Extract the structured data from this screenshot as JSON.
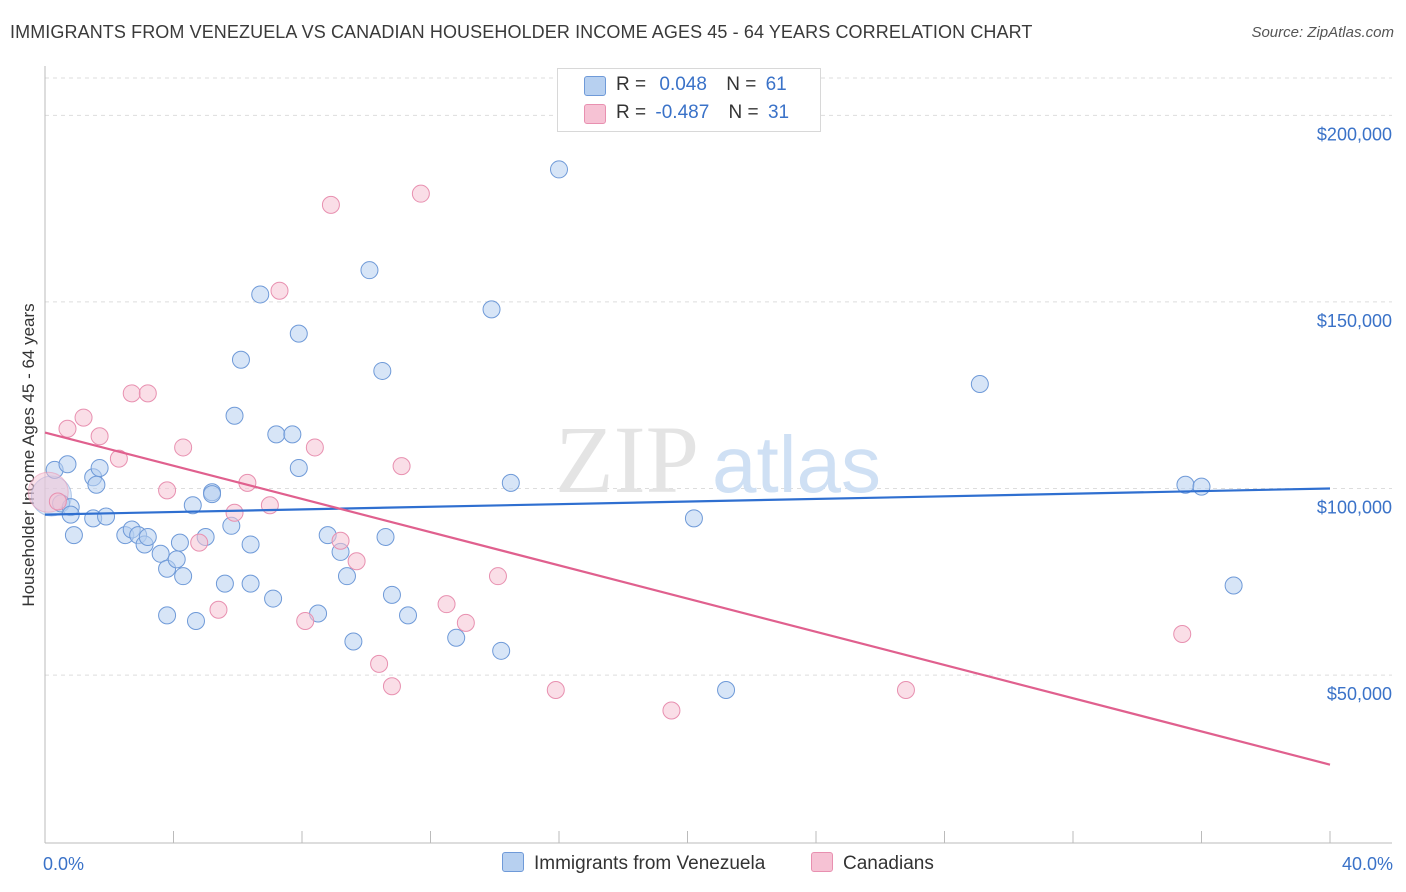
{
  "title": "IMMIGRANTS FROM VENEZUELA VS CANADIAN HOUSEHOLDER INCOME AGES 45 - 64 YEARS CORRELATION CHART",
  "source": "Source: ZipAtlas.com",
  "watermark": {
    "zip": "ZIP",
    "atlas": "atlas"
  },
  "legend": {
    "rows": [
      {
        "r_label": "R =",
        "r_value": "0.048",
        "n_label": "N =",
        "n_value": "61"
      },
      {
        "r_label": "R =",
        "r_value": "-0.487",
        "n_label": "N =",
        "n_value": "31"
      }
    ]
  },
  "bottom_legend": {
    "series1": "Immigrants from Venezuela",
    "series2": "Canadians"
  },
  "colors": {
    "blue": "#3a72c8",
    "blue_fill": "#b7d0f0",
    "blue_line": "#2f6fd0",
    "pink": "#e06090",
    "pink_fill": "#f6c2d4",
    "pink_line": "#e0608e"
  },
  "chart_data": {
    "type": "scatter",
    "title": "IMMIGRANTS FROM VENEZUELA VS CANADIAN HOUSEHOLDER INCOME AGES 45 - 64 YEARS CORRELATION CHART",
    "xlabel": "",
    "ylabel": "Householder Income Ages 45 - 64 years",
    "xlim": [
      0,
      40
    ],
    "ylim": [
      5000,
      210000
    ],
    "x_tick_labels": [
      "0.0%",
      "40.0%"
    ],
    "y_ticks": [
      50000,
      100000,
      150000,
      200000
    ],
    "y_tick_labels": [
      "$50,000",
      "$100,000",
      "$150,000",
      "$200,000"
    ],
    "series": [
      {
        "name": "Immigrants from Venezuela",
        "trend": {
          "x": [
            0,
            40
          ],
          "y": [
            93000,
            100000
          ]
        },
        "points": [
          [
            0.3,
            105000
          ],
          [
            0.7,
            106500
          ],
          [
            0.5,
            96000
          ],
          [
            0.9,
            87500
          ],
          [
            0.8,
            95000
          ],
          [
            0.8,
            93000
          ],
          [
            1.5,
            103000
          ],
          [
            1.6,
            101000
          ],
          [
            1.7,
            105500
          ],
          [
            1.5,
            92000
          ],
          [
            1.9,
            92500
          ],
          [
            2.5,
            87500
          ],
          [
            2.7,
            89000
          ],
          [
            2.9,
            87500
          ],
          [
            3.1,
            85000
          ],
          [
            3.2,
            87000
          ],
          [
            3.6,
            82500
          ],
          [
            3.8,
            78500
          ],
          [
            3.8,
            66000
          ],
          [
            4.1,
            81000
          ],
          [
            4.2,
            85500
          ],
          [
            4.3,
            76500
          ],
          [
            4.6,
            95500
          ],
          [
            4.7,
            64500
          ],
          [
            5.0,
            87000
          ],
          [
            5.2,
            99000
          ],
          [
            5.2,
            98500
          ],
          [
            5.6,
            74500
          ],
          [
            5.8,
            90000
          ],
          [
            5.9,
            119500
          ],
          [
            6.1,
            134500
          ],
          [
            6.4,
            74500
          ],
          [
            6.4,
            85000
          ],
          [
            6.7,
            152000
          ],
          [
            7.1,
            70500
          ],
          [
            7.2,
            114500
          ],
          [
            7.7,
            114500
          ],
          [
            7.9,
            105500
          ],
          [
            7.9,
            141500
          ],
          [
            8.5,
            66500
          ],
          [
            8.8,
            87500
          ],
          [
            9.2,
            83000
          ],
          [
            9.4,
            76500
          ],
          [
            9.6,
            59000
          ],
          [
            10.1,
            158500
          ],
          [
            10.5,
            131500
          ],
          [
            10.6,
            87000
          ],
          [
            10.8,
            71500
          ],
          [
            11.3,
            66000
          ],
          [
            12.8,
            60000
          ],
          [
            13.9,
            148000
          ],
          [
            14.2,
            56500
          ],
          [
            14.5,
            101500
          ],
          [
            16.0,
            185500
          ],
          [
            20.2,
            92000
          ],
          [
            21.2,
            46000
          ],
          [
            29.1,
            128000
          ],
          [
            35.5,
            101000
          ],
          [
            36.0,
            100500
          ],
          [
            37.0,
            74000
          ]
        ],
        "big_point": [
          0.2,
          98000
        ]
      },
      {
        "name": "Canadians",
        "trend": {
          "x": [
            0,
            40
          ],
          "y": [
            115000,
            26000
          ]
        },
        "points": [
          [
            0.4,
            96500
          ],
          [
            0.7,
            116000
          ],
          [
            1.2,
            119000
          ],
          [
            1.7,
            114000
          ],
          [
            2.3,
            108000
          ],
          [
            2.7,
            125500
          ],
          [
            3.2,
            125500
          ],
          [
            3.8,
            99500
          ],
          [
            4.3,
            111000
          ],
          [
            4.8,
            85500
          ],
          [
            5.4,
            67500
          ],
          [
            5.9,
            93500
          ],
          [
            6.3,
            101500
          ],
          [
            7.0,
            95500
          ],
          [
            7.3,
            153000
          ],
          [
            8.1,
            64500
          ],
          [
            8.4,
            111000
          ],
          [
            9.2,
            86000
          ],
          [
            9.7,
            80500
          ],
          [
            10.4,
            53000
          ],
          [
            10.8,
            47000
          ],
          [
            11.1,
            106000
          ],
          [
            11.7,
            179000
          ],
          [
            12.5,
            69000
          ],
          [
            13.1,
            64000
          ],
          [
            14.1,
            76500
          ],
          [
            15.9,
            46000
          ],
          [
            19.5,
            40500
          ],
          [
            26.8,
            46000
          ],
          [
            35.4,
            61000
          ],
          [
            8.9,
            176000
          ]
        ],
        "big_point": [
          0.1,
          99000
        ]
      }
    ]
  }
}
